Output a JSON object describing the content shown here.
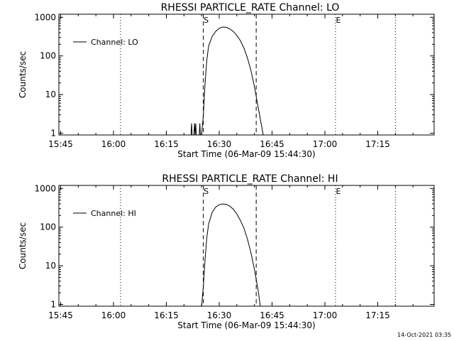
{
  "chart_data": [
    {
      "type": "line",
      "title": "RHESSI PARTICLE_RATE Channel: LO",
      "xlabel": "Start Time (06-Mar-09 15:44:30)",
      "ylabel": "Counts/sec",
      "yscale": "log",
      "xlim": [
        "15:44:30",
        "17:31:00"
      ],
      "ylim": [
        0.9,
        1200
      ],
      "x_tick_labels": [
        "15:45",
        "16:00",
        "16:15",
        "16:30",
        "16:45",
        "17:00",
        "17:15"
      ],
      "y_tick_labels": [
        "1",
        "10",
        "100",
        "1000"
      ],
      "legend": {
        "position": "top-left",
        "entries": [
          "Channel: LO"
        ]
      },
      "markers": [
        {
          "label": "",
          "time": "16:02",
          "style": "dotted"
        },
        {
          "label": "S",
          "time": "16:25:30",
          "style": "dashed"
        },
        {
          "label": "",
          "time": "16:40:30",
          "style": "dashed"
        },
        {
          "label": "E",
          "time": "17:03",
          "style": "dotted"
        },
        {
          "label": "",
          "time": "17:20",
          "style": "dotted"
        }
      ],
      "series": [
        {
          "name": "Channel: LO",
          "points": [
            [
              "16:22:00",
              0.9
            ],
            [
              "16:22:10",
              1.8
            ],
            [
              "16:22:20",
              0.9
            ],
            [
              "16:22:50",
              0.9
            ],
            [
              "16:23:00",
              1.8
            ],
            [
              "16:23:10",
              0.9
            ],
            [
              "16:23:20",
              1.8
            ],
            [
              "16:23:30",
              0.9
            ],
            [
              "16:24:20",
              0.9
            ],
            [
              "16:24:30",
              1.8
            ],
            [
              "16:24:40",
              0.9
            ],
            [
              "16:25:00",
              0.9
            ],
            [
              "16:25:30",
              3
            ],
            [
              "16:26:00",
              20
            ],
            [
              "16:26:30",
              80
            ],
            [
              "16:27:00",
              180
            ],
            [
              "16:28:00",
              320
            ],
            [
              "16:29:00",
              430
            ],
            [
              "16:30:00",
              520
            ],
            [
              "16:31:00",
              560
            ],
            [
              "16:32:00",
              550
            ],
            [
              "16:33:00",
              500
            ],
            [
              "16:34:00",
              430
            ],
            [
              "16:35:00",
              340
            ],
            [
              "16:36:00",
              250
            ],
            [
              "16:37:00",
              160
            ],
            [
              "16:38:00",
              90
            ],
            [
              "16:39:00",
              42
            ],
            [
              "16:40:00",
              16
            ],
            [
              "16:41:00",
              5
            ],
            [
              "16:42:00",
              1.6
            ],
            [
              "16:42:30",
              0.9
            ]
          ]
        }
      ]
    },
    {
      "type": "line",
      "title": "RHESSI PARTICLE_RATE Channel: HI",
      "xlabel": "Start Time (06-Mar-09 15:44:30)",
      "ylabel": "Counts/sec",
      "yscale": "log",
      "xlim": [
        "15:44:30",
        "17:31:00"
      ],
      "ylim": [
        0.9,
        1200
      ],
      "x_tick_labels": [
        "15:45",
        "16:00",
        "16:15",
        "16:30",
        "16:45",
        "17:00",
        "17:15"
      ],
      "y_tick_labels": [
        "1",
        "10",
        "100",
        "1000"
      ],
      "legend": {
        "position": "top-left",
        "entries": [
          "Channel: HI"
        ]
      },
      "markers": [
        {
          "label": "",
          "time": "16:02",
          "style": "dotted"
        },
        {
          "label": "S",
          "time": "16:25:30",
          "style": "dashed"
        },
        {
          "label": "",
          "time": "16:40:30",
          "style": "dashed"
        },
        {
          "label": "E",
          "time": "17:03",
          "style": "dotted"
        },
        {
          "label": "",
          "time": "17:20",
          "style": "dotted"
        }
      ],
      "series": [
        {
          "name": "Channel: HI",
          "points": [
            [
              "16:25:00",
              0.9
            ],
            [
              "16:25:30",
              3
            ],
            [
              "16:26:00",
              15
            ],
            [
              "16:26:30",
              55
            ],
            [
              "16:27:00",
              120
            ],
            [
              "16:28:00",
              240
            ],
            [
              "16:29:00",
              330
            ],
            [
              "16:30:00",
              380
            ],
            [
              "16:31:00",
              400
            ],
            [
              "16:32:00",
              390
            ],
            [
              "16:33:00",
              350
            ],
            [
              "16:34:00",
              290
            ],
            [
              "16:35:00",
              220
            ],
            [
              "16:36:00",
              150
            ],
            [
              "16:37:00",
              95
            ],
            [
              "16:38:00",
              50
            ],
            [
              "16:39:00",
              22
            ],
            [
              "16:40:00",
              8
            ],
            [
              "16:41:00",
              2.5
            ],
            [
              "16:41:40",
              0.9
            ]
          ]
        }
      ]
    }
  ],
  "footer": {
    "timestamp": "14-Oct-2021 03:35"
  }
}
